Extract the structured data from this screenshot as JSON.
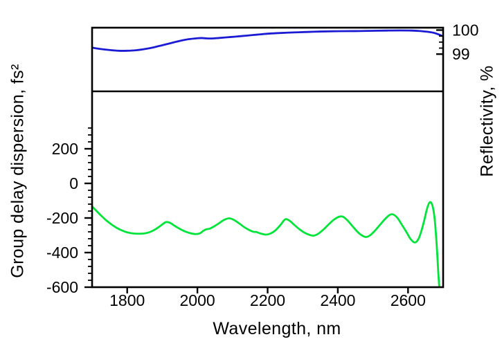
{
  "figure": {
    "background": "#ffffff",
    "axis_color": "#000000",
    "tick_label_color": "#000000"
  },
  "chart_data": {
    "type": "line",
    "title": "",
    "xlabel": "Wavelength, nm",
    "xlim": [
      1700,
      2700
    ],
    "x_ticks": [
      1800,
      2000,
      2200,
      2400,
      2600
    ],
    "grid": false,
    "legend": null,
    "panels": [
      {
        "id": "reflectivity",
        "ylabel": "Reflectivity, %",
        "ylim": [
          97.45,
          100.1
        ],
        "y_axis_side": "right",
        "y_major_ticks": [
          100,
          99
        ],
        "y_minor_ticks": [
          99.75,
          99.5,
          99.25
        ],
        "series": [
          {
            "name": "Reflectivity",
            "color": "#1b1bd3",
            "x": [
              1700,
              1725,
              1750,
              1775,
              1800,
              1825,
              1850,
              1875,
              1900,
              1925,
              1950,
              1975,
              2000,
              2012,
              2025,
              2040,
              2060,
              2085,
              2110,
              2140,
              2170,
              2200,
              2230,
              2260,
              2290,
              2320,
              2350,
              2385,
              2420,
              2460,
              2500,
              2540,
              2575,
              2610,
              2635,
              2655,
              2672,
              2685,
              2695
            ],
            "y": [
              99.27,
              99.21,
              99.17,
              99.14,
              99.14,
              99.16,
              99.21,
              99.28,
              99.37,
              99.46,
              99.55,
              99.62,
              99.66,
              99.67,
              99.655,
              99.65,
              99.67,
              99.7,
              99.73,
              99.77,
              99.81,
              99.85,
              99.875,
              99.895,
              99.91,
              99.925,
              99.94,
              99.95,
              99.955,
              99.96,
              99.97,
              99.98,
              99.985,
              99.98,
              99.96,
              99.93,
              99.89,
              99.83,
              99.77
            ]
          }
        ]
      },
      {
        "id": "gdd",
        "ylabel": "Group delay dispersion, fs²",
        "ylim": [
          -600,
          532
        ],
        "y_axis_side": "left",
        "y_major_ticks": [
          200,
          0,
          -200,
          -400,
          -600
        ],
        "y_minor_ticks": [
          320,
          280,
          240,
          160,
          120,
          80,
          40,
          -40,
          -80,
          -120,
          -160,
          -240,
          -280,
          -320,
          -360,
          -440,
          -480,
          -520,
          -560
        ],
        "series": [
          {
            "name": "Group delay dispersion",
            "color": "#00e33a",
            "x": [
              1700,
              1712,
              1725,
              1740,
              1755,
              1770,
              1785,
              1800,
              1815,
              1832,
              1850,
              1865,
              1880,
              1895,
              1910,
              1922,
              1935,
              1950,
              1965,
              1980,
              1995,
              2008,
              2017,
              2026,
              2035,
              2048,
              2062,
              2075,
              2090,
              2103,
              2118,
              2135,
              2150,
              2160,
              2168,
              2180,
              2195,
              2208,
              2222,
              2236,
              2250,
              2262,
              2275,
              2290,
              2305,
              2320,
              2332,
              2345,
              2360,
              2375,
              2390,
              2405,
              2415,
              2428,
              2442,
              2456,
              2468,
              2480,
              2492,
              2505,
              2520,
              2535,
              2548,
              2558,
              2570,
              2582,
              2595,
              2606,
              2615,
              2622,
              2630,
              2638,
              2646,
              2653,
              2659,
              2663,
              2667,
              2671,
              2675,
              2679,
              2683,
              2686,
              2689
            ],
            "y": [
              -133,
              -158,
              -185,
              -213,
              -237,
              -257,
              -272,
              -283,
              -289,
              -291,
              -289,
              -281,
              -266,
              -245,
              -224,
              -228,
              -245,
              -263,
              -278,
              -288,
              -293,
              -288,
              -274,
              -265,
              -262,
              -248,
              -230,
              -212,
              -202,
              -210,
              -230,
              -255,
              -272,
              -280,
              -281,
              -290,
              -296,
              -290,
              -272,
              -242,
              -208,
              -215,
              -238,
              -264,
              -285,
              -298,
              -302,
              -290,
              -265,
              -235,
              -208,
              -192,
              -193,
              -215,
              -248,
              -280,
              -300,
              -310,
              -300,
              -275,
              -240,
              -205,
              -182,
              -180,
              -200,
              -238,
              -280,
              -318,
              -338,
              -340,
              -320,
              -275,
              -215,
              -155,
              -118,
              -108,
              -115,
              -140,
              -190,
              -280,
              -400,
              -510,
              -600
            ]
          }
        ]
      }
    ]
  }
}
